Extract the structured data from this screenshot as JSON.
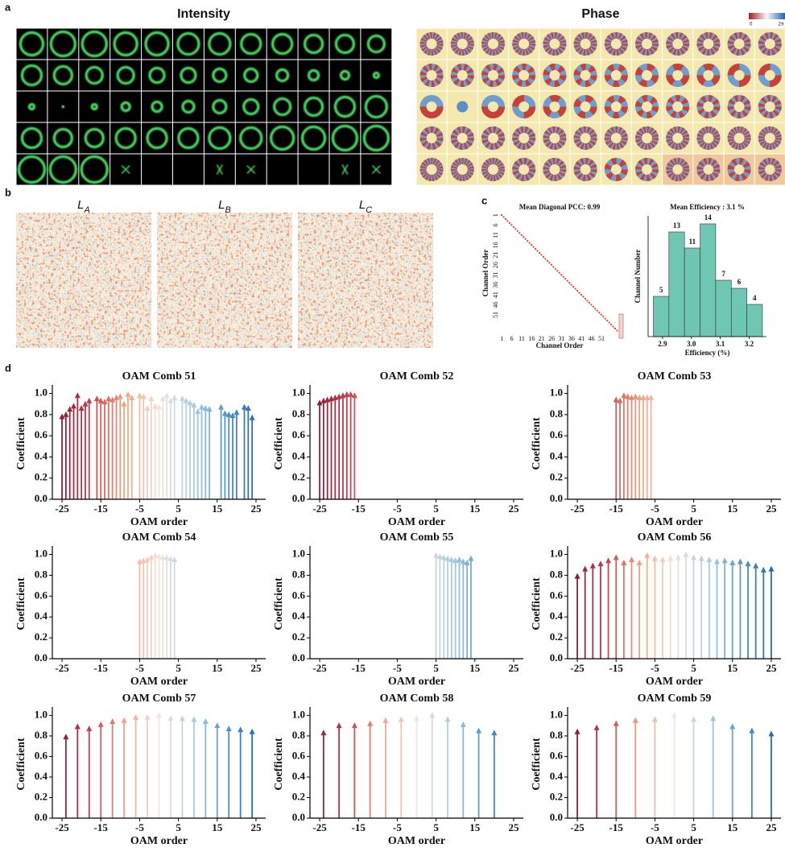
{
  "panel_labels": {
    "a": "a",
    "b": "b",
    "c": "c",
    "d": "d"
  },
  "panel_a": {
    "intensity_title": "Intensity",
    "phase_title": "Phase",
    "colorbar_labels": [
      "0",
      "2π"
    ]
  },
  "panel_b": {
    "titles": [
      {
        "base": "L",
        "sub": "A"
      },
      {
        "base": "L",
        "sub": "B"
      },
      {
        "base": "L",
        "sub": "C"
      }
    ]
  },
  "chart_data": [
    {
      "type": "heatmap",
      "title": "Mean Diagonal PCC: 0.99",
      "xlabel": "Channel Order",
      "ylabel": "Channel Order",
      "xlim": [
        0.5,
        59.5
      ],
      "ylim": [
        0.5,
        59.5
      ],
      "xticks": [
        1,
        6,
        11,
        16,
        21,
        26,
        31,
        36,
        41,
        46,
        51
      ],
      "yticks": [
        1,
        6,
        11,
        16,
        21,
        26,
        31,
        36,
        41,
        46,
        51
      ],
      "color": "#e0463c"
    },
    {
      "type": "histogram",
      "title": "Mean Efficiency : 3.1 %",
      "xlabel": "Efficiency (%)",
      "ylabel": "Channel Number",
      "bins": [
        2.868,
        2.922,
        2.976,
        3.03,
        3.084,
        3.138,
        3.192,
        3.246
      ],
      "values": [
        5,
        13,
        11,
        14,
        7,
        6,
        4
      ],
      "xlim": [
        2.85,
        3.26
      ],
      "xticks": [
        2.9,
        {
          "value": 3,
          "label": "3.0"
        },
        3.1,
        3.2
      ],
      "ylim": [
        0,
        15
      ],
      "color": "#6ec6b3"
    },
    {
      "type": "stem",
      "title": "OAM Comb 51",
      "xlabel": "OAM order",
      "ylabel": "Coefficient",
      "x": [
        -25,
        -24,
        -23,
        -22,
        -21,
        -20,
        -19,
        -18,
        -16,
        -15,
        -14,
        -13,
        -12,
        -11,
        -10,
        -9,
        -8,
        -7,
        -5,
        -4,
        -3,
        -2,
        -1,
        0,
        1,
        2,
        3,
        4,
        6,
        7,
        8,
        9,
        10,
        11,
        12,
        13,
        16,
        17,
        18,
        19,
        20,
        22,
        23,
        24
      ],
      "values": [
        0.78,
        0.8,
        0.85,
        0.88,
        0.98,
        0.86,
        0.9,
        0.93,
        0.95,
        0.93,
        0.92,
        0.95,
        0.94,
        0.96,
        0.97,
        0.9,
        0.99,
        0.96,
        0.98,
        0.97,
        0.86,
        0.95,
        0.88,
        0.87,
        0.95,
        0.98,
        0.93,
        0.96,
        0.95,
        0.93,
        0.91,
        0.89,
        0.83,
        0.87,
        0.86,
        0.85,
        0.87,
        0.81,
        0.8,
        0.79,
        0.82,
        0.87,
        0.86,
        0.77
      ],
      "xlim": [
        -27.5,
        27.5
      ],
      "xticks": [
        -25,
        -15,
        -5,
        5,
        15,
        25
      ],
      "ylim": [
        0,
        1.05
      ],
      "yticks": [
        {
          "value": 0,
          "label": "0.0"
        },
        {
          "value": 0.2,
          "label": "0.2"
        },
        {
          "value": 0.4,
          "label": "0.4"
        },
        {
          "value": 0.6,
          "label": "0.6"
        },
        {
          "value": 0.8,
          "label": "0.8"
        },
        {
          "value": 1,
          "label": "1.0"
        }
      ],
      "colormap": [
        "#7b1530",
        "#c0394a",
        "#f0a07e",
        "#f3e4dc",
        "#a6cde0",
        "#4b8fbf",
        "#1f5f99"
      ]
    },
    {
      "type": "stem",
      "title": "OAM Comb 52",
      "xlabel": "OAM order",
      "ylabel": "Coefficient",
      "x": [
        -25,
        -24,
        -23,
        -22,
        -21,
        -20,
        -19,
        -18,
        -17,
        -16
      ],
      "values": [
        0.91,
        0.93,
        0.94,
        0.95,
        0.96,
        0.97,
        0.98,
        0.99,
        0.99,
        0.98
      ],
      "xlim": [
        -27.5,
        27.5
      ],
      "xticks": [
        -25,
        -15,
        -5,
        5,
        15,
        25
      ],
      "ylim": [
        0,
        1.05
      ],
      "yticks": [
        {
          "value": 0,
          "label": "0.0"
        },
        {
          "value": 0.2,
          "label": "0.2"
        },
        {
          "value": 0.4,
          "label": "0.4"
        },
        {
          "value": 0.6,
          "label": "0.6"
        },
        {
          "value": 0.8,
          "label": "0.8"
        },
        {
          "value": 1,
          "label": "1.0"
        }
      ],
      "colormap": [
        "#7b1530",
        "#c0394a",
        "#f0a07e",
        "#f3e4dc",
        "#a6cde0",
        "#4b8fbf",
        "#1f5f99"
      ]
    },
    {
      "type": "stem",
      "title": "OAM Comb 53",
      "xlabel": "OAM order",
      "ylabel": "Coefficient",
      "x": [
        -15,
        -14,
        -13,
        -12,
        -11,
        -10,
        -9,
        -8,
        -7,
        -6
      ],
      "values": [
        0.94,
        0.93,
        0.98,
        0.97,
        0.96,
        0.97,
        0.96,
        0.96,
        0.96,
        0.96
      ],
      "xlim": [
        -27.5,
        27.5
      ],
      "xticks": [
        -25,
        -15,
        -5,
        5,
        15,
        25
      ],
      "ylim": [
        0,
        1.05
      ],
      "yticks": [
        {
          "value": 0,
          "label": "0.0"
        },
        {
          "value": 0.2,
          "label": "0.2"
        },
        {
          "value": 0.4,
          "label": "0.4"
        },
        {
          "value": 0.6,
          "label": "0.6"
        },
        {
          "value": 0.8,
          "label": "0.8"
        },
        {
          "value": 1,
          "label": "1.0"
        }
      ],
      "colormap": [
        "#7b1530",
        "#c0394a",
        "#f0a07e",
        "#f3e4dc",
        "#a6cde0",
        "#4b8fbf",
        "#1f5f99"
      ]
    },
    {
      "type": "stem",
      "title": "OAM Comb 54",
      "xlabel": "OAM order",
      "ylabel": "Coefficient",
      "x": [
        -5,
        -4,
        -3,
        -2,
        -1,
        0,
        1,
        2,
        3,
        4
      ],
      "values": [
        0.93,
        0.94,
        0.95,
        0.97,
        0.99,
        0.98,
        0.97,
        0.97,
        0.96,
        0.95
      ],
      "xlim": [
        -27.5,
        27.5
      ],
      "xticks": [
        -25,
        -15,
        -5,
        5,
        15,
        25
      ],
      "ylim": [
        0,
        1.05
      ],
      "yticks": [
        {
          "value": 0,
          "label": "0.0"
        },
        {
          "value": 0.2,
          "label": "0.2"
        },
        {
          "value": 0.4,
          "label": "0.4"
        },
        {
          "value": 0.6,
          "label": "0.6"
        },
        {
          "value": 0.8,
          "label": "0.8"
        },
        {
          "value": 1,
          "label": "1.0"
        }
      ],
      "colormap": [
        "#7b1530",
        "#c0394a",
        "#f0a07e",
        "#f3e4dc",
        "#a6cde0",
        "#4b8fbf",
        "#1f5f99"
      ]
    },
    {
      "type": "stem",
      "title": "OAM Comb 55",
      "xlabel": "OAM order",
      "ylabel": "Coefficient",
      "x": [
        5,
        6,
        7,
        8,
        9,
        10,
        11,
        12,
        13,
        14
      ],
      "values": [
        0.99,
        0.98,
        0.97,
        0.96,
        0.95,
        0.94,
        0.95,
        0.93,
        0.92,
        0.96
      ],
      "xlim": [
        -27.5,
        27.5
      ],
      "xticks": [
        -25,
        -15,
        -5,
        5,
        15,
        25
      ],
      "ylim": [
        0,
        1.05
      ],
      "yticks": [
        {
          "value": 0,
          "label": "0.0"
        },
        {
          "value": 0.2,
          "label": "0.2"
        },
        {
          "value": 0.4,
          "label": "0.4"
        },
        {
          "value": 0.6,
          "label": "0.6"
        },
        {
          "value": 0.8,
          "label": "0.8"
        },
        {
          "value": 1,
          "label": "1.0"
        }
      ],
      "colormap": [
        "#7b1530",
        "#c0394a",
        "#f0a07e",
        "#f3e4dc",
        "#a6cde0",
        "#4b8fbf",
        "#1f5f99"
      ]
    },
    {
      "type": "stem",
      "title": "OAM Comb 56",
      "xlabel": "OAM order",
      "ylabel": "Coefficient",
      "x": [
        -25,
        -23,
        -21,
        -19,
        -17,
        -15,
        -13,
        -11,
        -9,
        -7,
        -5,
        -3,
        -1,
        1,
        3,
        5,
        7,
        9,
        11,
        13,
        15,
        17,
        19,
        21,
        23,
        25
      ],
      "values": [
        0.79,
        0.86,
        0.89,
        0.91,
        0.94,
        0.97,
        0.92,
        0.95,
        0.92,
        0.99,
        0.96,
        0.95,
        0.96,
        0.97,
        1.0,
        0.97,
        0.96,
        0.95,
        0.93,
        0.94,
        0.92,
        0.93,
        0.91,
        0.89,
        0.85,
        0.86
      ],
      "xlim": [
        -27.5,
        27.5
      ],
      "xticks": [
        -25,
        -15,
        -5,
        5,
        15,
        25
      ],
      "ylim": [
        0,
        1.05
      ],
      "yticks": [
        {
          "value": 0,
          "label": "0.0"
        },
        {
          "value": 0.2,
          "label": "0.2"
        },
        {
          "value": 0.4,
          "label": "0.4"
        },
        {
          "value": 0.6,
          "label": "0.6"
        },
        {
          "value": 0.8,
          "label": "0.8"
        },
        {
          "value": 1,
          "label": "1.0"
        }
      ],
      "colormap": [
        "#7b1530",
        "#c0394a",
        "#f0a07e",
        "#f3e4dc",
        "#a6cde0",
        "#4b8fbf",
        "#1f5f99"
      ]
    },
    {
      "type": "stem",
      "title": "OAM Comb 57",
      "xlabel": "OAM order",
      "ylabel": "Coefficient",
      "x": [
        -24,
        -21,
        -18,
        -15,
        -12,
        -9,
        -6,
        -3,
        0,
        3,
        6,
        9,
        12,
        15,
        18,
        21,
        24
      ],
      "values": [
        0.79,
        0.89,
        0.87,
        0.91,
        0.94,
        0.95,
        0.98,
        0.98,
        1.0,
        0.97,
        0.97,
        0.96,
        0.94,
        0.9,
        0.87,
        0.86,
        0.84
      ],
      "xlim": [
        -27.5,
        27.5
      ],
      "xticks": [
        -25,
        -15,
        -5,
        5,
        15,
        25
      ],
      "ylim": [
        0,
        1.05
      ],
      "yticks": [
        {
          "value": 0,
          "label": "0.0"
        },
        {
          "value": 0.2,
          "label": "0.2"
        },
        {
          "value": 0.4,
          "label": "0.4"
        },
        {
          "value": 0.6,
          "label": "0.6"
        },
        {
          "value": 0.8,
          "label": "0.8"
        },
        {
          "value": 1,
          "label": "1.0"
        }
      ],
      "colormap": [
        "#7b1530",
        "#c0394a",
        "#f0a07e",
        "#f3e4dc",
        "#a6cde0",
        "#4b8fbf",
        "#1f5f99"
      ]
    },
    {
      "type": "stem",
      "title": "OAM Comb 58",
      "xlabel": "OAM order",
      "ylabel": "Coefficient",
      "x": [
        -24,
        -20,
        -16,
        -12,
        -8,
        -4,
        0,
        4,
        8,
        12,
        16,
        20
      ],
      "values": [
        0.83,
        0.9,
        0.9,
        0.92,
        0.95,
        0.96,
        0.97,
        1.0,
        0.96,
        0.91,
        0.85,
        0.83
      ],
      "xlim": [
        -27.5,
        27.5
      ],
      "xticks": [
        -25,
        -15,
        -5,
        5,
        15,
        25
      ],
      "ylim": [
        0,
        1.05
      ],
      "yticks": [
        {
          "value": 0,
          "label": "0.0"
        },
        {
          "value": 0.2,
          "label": "0.2"
        },
        {
          "value": 0.4,
          "label": "0.4"
        },
        {
          "value": 0.6,
          "label": "0.6"
        },
        {
          "value": 0.8,
          "label": "0.8"
        },
        {
          "value": 1,
          "label": "1.0"
        }
      ],
      "colormap": [
        "#7b1530",
        "#c0394a",
        "#f0a07e",
        "#f3e4dc",
        "#a6cde0",
        "#4b8fbf",
        "#1f5f99"
      ]
    },
    {
      "type": "stem",
      "title": "OAM Comb 59",
      "xlabel": "OAM order",
      "ylabel": "Coefficient",
      "x": [
        -25,
        -20,
        -15,
        -10,
        -5,
        0,
        5,
        10,
        15,
        20,
        25
      ],
      "values": [
        0.84,
        0.88,
        0.92,
        0.95,
        0.96,
        1.0,
        0.96,
        0.97,
        0.89,
        0.85,
        0.82
      ],
      "xlim": [
        -27.5,
        27.5
      ],
      "xticks": [
        -25,
        -15,
        -5,
        5,
        15,
        25
      ],
      "ylim": [
        0,
        1.05
      ],
      "yticks": [
        {
          "value": 0,
          "label": "0.0"
        },
        {
          "value": 0.2,
          "label": "0.2"
        },
        {
          "value": 0.4,
          "label": "0.4"
        },
        {
          "value": 0.6,
          "label": "0.6"
        },
        {
          "value": 0.8,
          "label": "0.8"
        },
        {
          "value": 1,
          "label": "1.0"
        }
      ],
      "colormap": [
        "#7b1530",
        "#c0394a",
        "#f0a07e",
        "#f3e4dc",
        "#a6cde0",
        "#4b8fbf",
        "#1f5f99"
      ]
    }
  ]
}
